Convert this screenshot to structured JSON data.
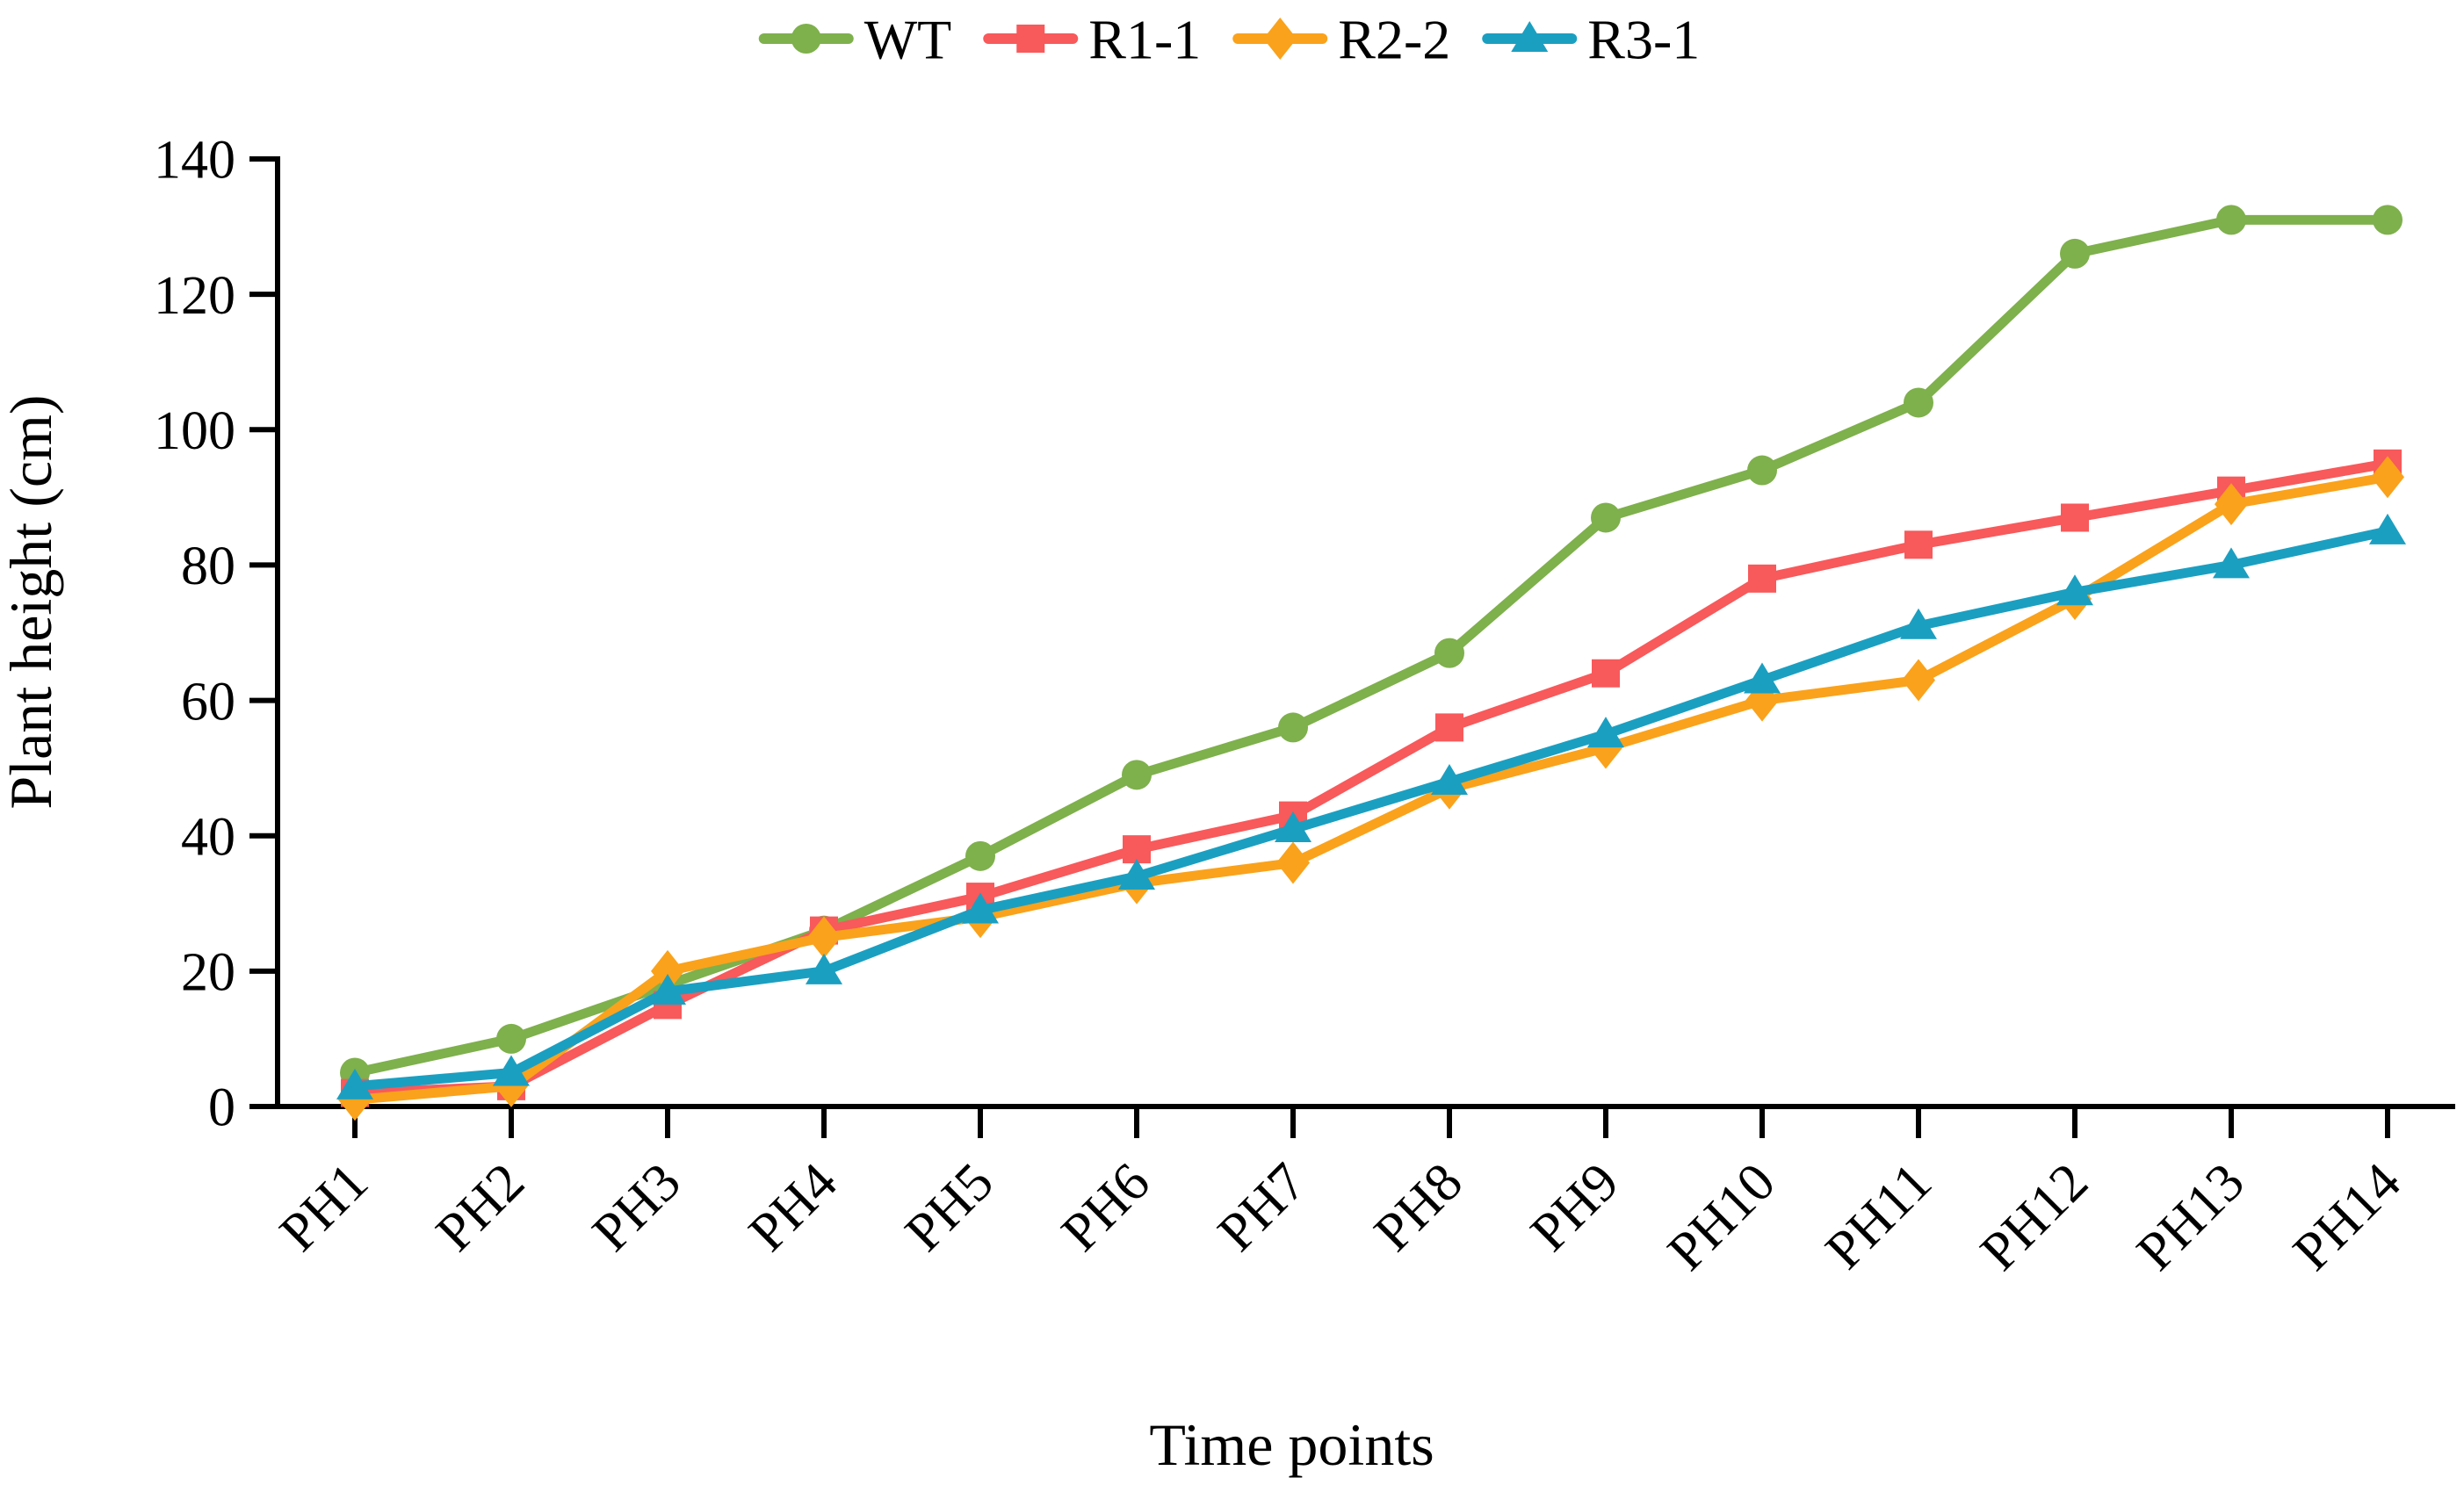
{
  "figure": {
    "background": "#ffffff",
    "axis_color": "#000000",
    "text_color": "#000000"
  },
  "chart_data": {
    "type": "line",
    "title": "",
    "xlabel": "Time points",
    "ylabel": "Plant height (cm)",
    "categories": [
      "PH1",
      "PH2",
      "PH3",
      "PH4",
      "PH5",
      "PH6",
      "PH7",
      "PH8",
      "PH9",
      "PH10",
      "PH11",
      "PH12",
      "PH13",
      "PH14"
    ],
    "series": [
      {
        "name": "WT",
        "color": "#7EB04C",
        "marker": "circle",
        "values": [
          5,
          10,
          18,
          26,
          37,
          49,
          56,
          67,
          87,
          94,
          104,
          126,
          131,
          131
        ]
      },
      {
        "name": "R1-1",
        "color": "#F8595B",
        "marker": "square",
        "values": [
          2,
          3,
          15,
          26,
          31,
          38,
          43,
          56,
          64,
          78,
          83,
          87,
          91,
          95
        ]
      },
      {
        "name": "R2-2",
        "color": "#FAA21B",
        "marker": "diamond",
        "values": [
          1,
          3,
          20,
          25,
          28,
          33,
          36,
          47,
          53,
          60,
          63,
          75,
          89,
          93
        ]
      },
      {
        "name": "R3-1",
        "color": "#1B9FC1",
        "marker": "triangle",
        "values": [
          3,
          5,
          17,
          20,
          29,
          34,
          41,
          48,
          55,
          63,
          71,
          76,
          80,
          85
        ]
      }
    ],
    "ylim": [
      0,
      140
    ],
    "yticks": [
      0,
      20,
      40,
      60,
      80,
      100,
      120,
      140
    ],
    "grid": false,
    "legend_position": "top-center"
  }
}
